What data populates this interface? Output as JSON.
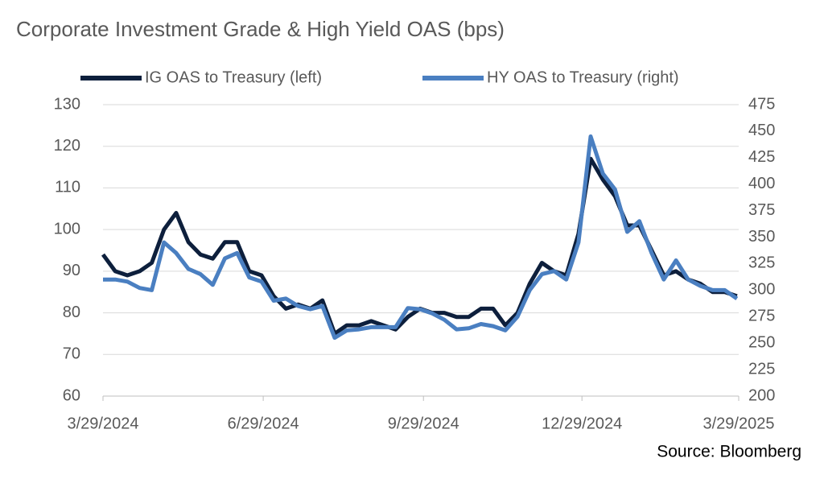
{
  "chart_data": {
    "type": "line",
    "title": "Corporate Investment Grade & High Yield OAS (bps)",
    "source": "Source: Bloomberg",
    "x": [
      "3/29/2024",
      "4/5/2024",
      "4/12/2024",
      "4/19/2024",
      "4/26/2024",
      "5/3/2024",
      "5/10/2024",
      "5/17/2024",
      "5/24/2024",
      "5/31/2024",
      "6/7/2024",
      "6/14/2024",
      "6/21/2024",
      "6/28/2024",
      "7/5/2024",
      "7/12/2024",
      "7/19/2024",
      "7/26/2024",
      "8/2/2024",
      "8/9/2024",
      "8/16/2024",
      "8/23/2024",
      "8/30/2024",
      "9/6/2024",
      "9/13/2024",
      "9/20/2024",
      "9/27/2024",
      "10/4/2024",
      "10/11/2024",
      "10/18/2024",
      "10/25/2024",
      "11/1/2024",
      "11/8/2024",
      "11/15/2024",
      "11/22/2024",
      "11/29/2024",
      "12/6/2024",
      "12/13/2024",
      "12/20/2024",
      "12/27/2024",
      "1/3/2025",
      "1/10/2025",
      "1/17/2025",
      "1/24/2025",
      "1/31/2025",
      "2/7/2025",
      "2/14/2025",
      "2/21/2025",
      "2/28/2025",
      "3/7/2025",
      "3/14/2025",
      "3/21/2025",
      "3/28/2025"
    ],
    "series": [
      {
        "name": "IG OAS to Treasury (left)",
        "color": "#0d1f3c",
        "axis": "y",
        "values": [
          94,
          90,
          89,
          90,
          92,
          100,
          104,
          97,
          94,
          93,
          97,
          97,
          90,
          89,
          84,
          81,
          82,
          81,
          83,
          75,
          77,
          77,
          78,
          77,
          76,
          79,
          81,
          80,
          80,
          79,
          79,
          81,
          81,
          77,
          80,
          87,
          92,
          90,
          89,
          99,
          117,
          112,
          108,
          101,
          101,
          95,
          89,
          90,
          88,
          87,
          85,
          85,
          84
        ]
      },
      {
        "name": "HY OAS to Treasury (right)",
        "color": "#4a7fc1",
        "axis": "y2",
        "values": [
          310,
          310,
          308,
          302,
          300,
          345,
          335,
          320,
          315,
          305,
          330,
          335,
          312,
          308,
          290,
          292,
          285,
          282,
          285,
          255,
          262,
          263,
          265,
          265,
          265,
          283,
          282,
          278,
          272,
          263,
          264,
          268,
          266,
          262,
          275,
          300,
          315,
          318,
          310,
          345,
          445,
          410,
          395,
          355,
          365,
          335,
          310,
          328,
          310,
          304,
          300,
          300,
          292
        ]
      }
    ],
    "xlim": [
      "3/29/2024",
      "3/29/2025"
    ],
    "xticks": [
      "3/29/2024",
      "6/29/2024",
      "9/29/2024",
      "12/29/2024",
      "3/29/2025"
    ],
    "ylim": [
      60,
      130
    ],
    "yticks": [
      60,
      70,
      80,
      90,
      100,
      110,
      120,
      130
    ],
    "y2lim": [
      200,
      475
    ],
    "y2ticks": [
      200,
      225,
      250,
      275,
      300,
      325,
      350,
      375,
      400,
      425,
      450,
      475
    ],
    "grid": true,
    "legend": "top"
  }
}
